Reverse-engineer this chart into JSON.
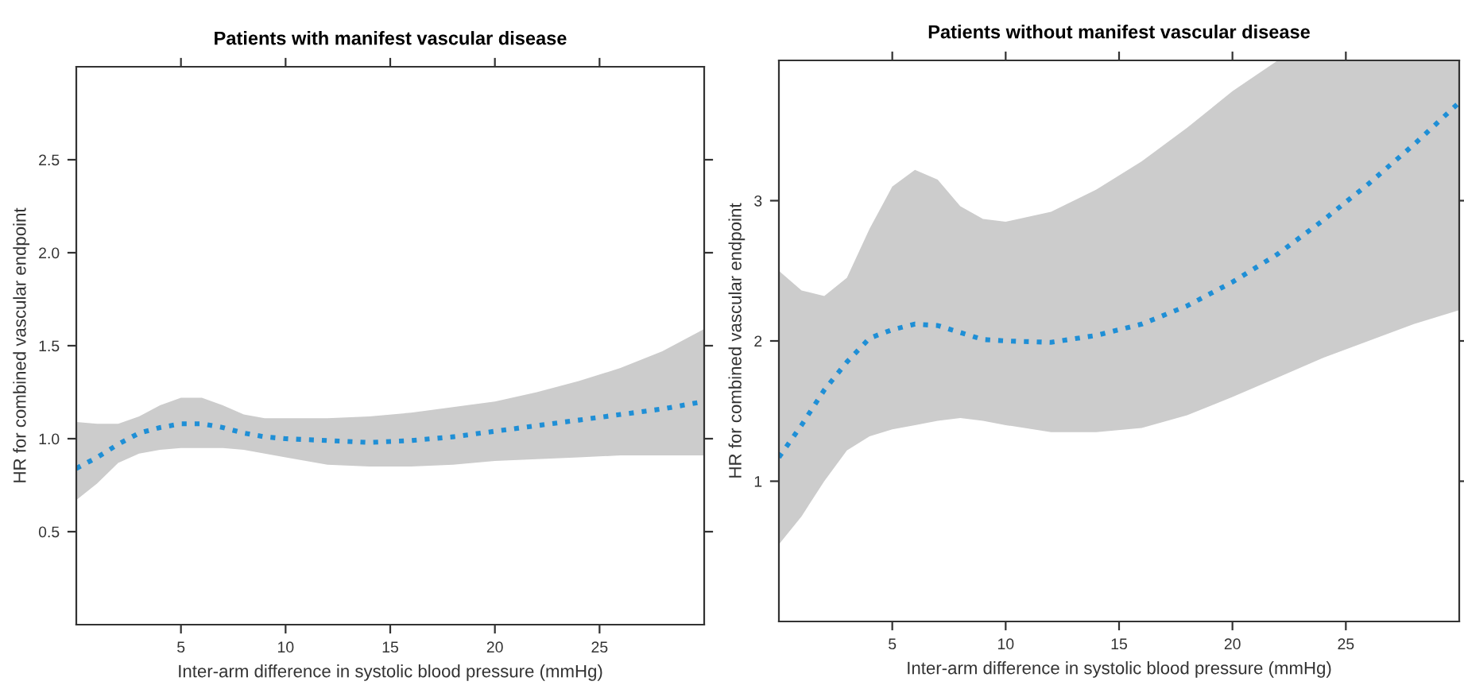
{
  "chart_data": [
    {
      "type": "line",
      "title": "Patients with manifest vascular disease",
      "xlabel": "Inter-arm difference in systolic blood pressure (mmHg)",
      "ylabel": "HR for combined vascular endpoint",
      "x": [
        0,
        1,
        2,
        3,
        4,
        5,
        6,
        7,
        8,
        9,
        10,
        12,
        14,
        16,
        18,
        20,
        22,
        24,
        26,
        28,
        30
      ],
      "series": [
        {
          "color": "#1f8fd6",
          "values": [
            0.84,
            0.9,
            0.97,
            1.03,
            1.06,
            1.08,
            1.08,
            1.06,
            1.03,
            1.01,
            1.0,
            0.99,
            0.98,
            0.99,
            1.01,
            1.04,
            1.07,
            1.1,
            1.13,
            1.16,
            1.2
          ],
          "upper": [
            1.09,
            1.08,
            1.08,
            1.12,
            1.18,
            1.22,
            1.22,
            1.18,
            1.13,
            1.11,
            1.11,
            1.11,
            1.12,
            1.14,
            1.17,
            1.2,
            1.25,
            1.31,
            1.38,
            1.47,
            1.59
          ],
          "lower": [
            0.67,
            0.76,
            0.87,
            0.92,
            0.94,
            0.95,
            0.95,
            0.95,
            0.94,
            0.92,
            0.9,
            0.86,
            0.85,
            0.85,
            0.86,
            0.88,
            0.89,
            0.9,
            0.91,
            0.91,
            0.91
          ]
        }
      ],
      "xlim": [
        0,
        30
      ],
      "xticks": [
        5,
        10,
        15,
        20,
        25
      ],
      "ylim": [
        0,
        3
      ],
      "yticks": [
        0.5,
        {
          "value": 1,
          "label": "1.0"
        },
        1.5,
        {
          "value": 2,
          "label": "2.0"
        },
        2.5
      ],
      "line_style": "dotted",
      "grid": false,
      "legend": false
    },
    {
      "type": "line",
      "title": "Patients without manifest vascular disease",
      "xlabel": "Inter-arm difference in systolic blood pressure (mmHg)",
      "ylabel": "HR for combined vascular endpoint",
      "x": [
        0,
        1,
        2,
        3,
        4,
        5,
        6,
        7,
        8,
        9,
        10,
        12,
        14,
        16,
        18,
        20,
        22,
        24,
        26,
        28,
        30
      ],
      "series": [
        {
          "color": "#1f8fd6",
          "values": [
            1.17,
            1.4,
            1.65,
            1.85,
            2.02,
            2.08,
            2.12,
            2.11,
            2.06,
            2.01,
            2.0,
            1.99,
            2.04,
            2.12,
            2.25,
            2.42,
            2.62,
            2.86,
            3.12,
            3.4,
            3.7
          ],
          "upper": [
            2.5,
            2.36,
            2.32,
            2.45,
            2.8,
            3.1,
            3.22,
            3.15,
            2.96,
            2.87,
            2.85,
            2.92,
            3.08,
            3.28,
            3.52,
            3.78,
            4,
            4,
            4,
            4,
            4
          ],
          "lower": [
            0.55,
            0.75,
            1.0,
            1.22,
            1.32,
            1.37,
            1.4,
            1.43,
            1.45,
            1.43,
            1.4,
            1.35,
            1.35,
            1.38,
            1.47,
            1.6,
            1.74,
            1.88,
            2.0,
            2.12,
            2.22
          ]
        }
      ],
      "xlim": [
        0,
        30
      ],
      "xticks": [
        5,
        10,
        15,
        20,
        25
      ],
      "ylim": [
        0,
        4
      ],
      "yticks": [
        1,
        2,
        3
      ],
      "line_style": "dotted",
      "grid": false,
      "legend": false
    }
  ]
}
